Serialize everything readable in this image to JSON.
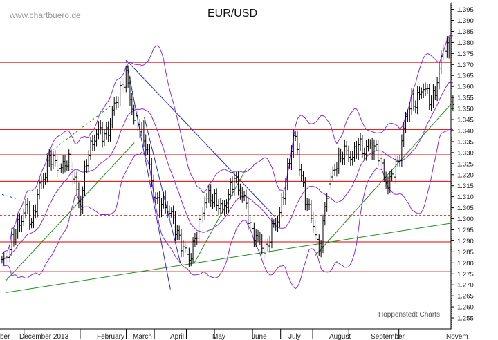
{
  "colors": {
    "price_bars": "#000000",
    "bollinger_bands": "#8a2be2",
    "resistance_lines": "#e00000",
    "trend_lines_green": "#1a8f1a",
    "trend_lines_blue": "#1e2fd0",
    "axis": "#000000"
  },
  "chart_data": {
    "type": "ohlc",
    "title": "EUR/USD",
    "watermark": "www.chartbuero.de",
    "credit": "Hoppenstedt Charts",
    "x_month_labels": [
      "ber",
      "December 2013",
      "February",
      "March",
      "April",
      "May",
      "June",
      "July",
      "August",
      "September",
      "Novem"
    ],
    "x_month_label_positions": [
      -0.5,
      1.0,
      3.0,
      4.0,
      5.0,
      6.0,
      7.0,
      8.0,
      9.0,
      10.0,
      11.3
    ],
    "x_month_boundaries": [
      0.35,
      1.75,
      2.9,
      3.6,
      4.4,
      5.1,
      6.05,
      6.75,
      7.55,
      8.45,
      9.7,
      10.75
    ],
    "y_axis": {
      "side": "right",
      "ylim": [
        1.25,
        1.398
      ],
      "tick_labels": [
        "1.255",
        "1.260",
        "1.265",
        "1.270",
        "1.275",
        "1.280",
        "1.285",
        "1.290",
        "1.295",
        "1.300",
        "1.305",
        "1.310",
        "1.315",
        "1.320",
        "1.325",
        "1.330",
        "1.335",
        "1.340",
        "1.345",
        "1.350",
        "1.355",
        "1.360",
        "1.365",
        "1.370",
        "1.375",
        "1.380",
        "1.385",
        "1.390",
        "1.395"
      ]
    },
    "x_range": [
      -0.25,
      11.0
    ],
    "horizontal_lines": [
      {
        "value": 1.371,
        "style": "solid"
      },
      {
        "value": 1.3405,
        "style": "solid"
      },
      {
        "value": 1.329,
        "style": "solid"
      },
      {
        "value": 1.317,
        "style": "solid"
      },
      {
        "value": 1.3015,
        "style": "dashed"
      },
      {
        "value": 1.2895,
        "style": "solid"
      },
      {
        "value": 1.276,
        "style": "solid"
      }
    ],
    "trend_lines": [
      {
        "color": "green",
        "style": "solid",
        "from": [
          -0.1,
          1.2665
        ],
        "to": [
          11.0,
          1.298
        ]
      },
      {
        "color": "green",
        "style": "solid",
        "from": [
          -0.1,
          1.272
        ],
        "to": [
          3.1,
          1.3345
        ]
      },
      {
        "color": "green",
        "style": "dashed",
        "from": [
          0.9,
          1.329
        ],
        "to": [
          2.5,
          1.351
        ]
      },
      {
        "color": "green",
        "style": "solid",
        "from": [
          4.6,
          1.28
        ],
        "to": [
          5.9,
          1.323
        ]
      },
      {
        "color": "green",
        "style": "solid",
        "from": [
          7.6,
          1.283
        ],
        "to": [
          11.0,
          1.352
        ]
      },
      {
        "color": "blue",
        "style": "solid",
        "from": [
          2.9,
          1.372
        ],
        "to": [
          4.0,
          1.268
        ]
      },
      {
        "color": "blue",
        "style": "solid",
        "from": [
          2.9,
          1.372
        ],
        "to": [
          6.6,
          1.301
        ]
      },
      {
        "color": "blue",
        "style": "solid",
        "from": [
          3.35,
          1.346
        ],
        "to": [
          4.25,
          1.28
        ]
      },
      {
        "color": "blue",
        "style": "dashed",
        "from": [
          -0.2,
          1.311
        ],
        "to": [
          0.2,
          1.309
        ]
      }
    ],
    "price_series": [
      [
        -0.2,
        1.279
      ],
      [
        0.0,
        1.287
      ],
      [
        0.2,
        1.297
      ],
      [
        0.4,
        1.305
      ],
      [
        0.55,
        1.298
      ],
      [
        0.7,
        1.312
      ],
      [
        0.85,
        1.32
      ],
      [
        1.0,
        1.328
      ],
      [
        1.15,
        1.325
      ],
      [
        1.3,
        1.322
      ],
      [
        1.45,
        1.328
      ],
      [
        1.6,
        1.318
      ],
      [
        1.75,
        1.305
      ],
      [
        1.9,
        1.325
      ],
      [
        2.05,
        1.335
      ],
      [
        2.2,
        1.34
      ],
      [
        2.35,
        1.338
      ],
      [
        2.5,
        1.342
      ],
      [
        2.6,
        1.352
      ],
      [
        2.7,
        1.356
      ],
      [
        2.8,
        1.36
      ],
      [
        2.9,
        1.365
      ],
      [
        3.0,
        1.356
      ],
      [
        3.1,
        1.343
      ],
      [
        3.2,
        1.344
      ],
      [
        3.35,
        1.336
      ],
      [
        3.45,
        1.328
      ],
      [
        3.55,
        1.315
      ],
      [
        3.7,
        1.305
      ],
      [
        3.85,
        1.308
      ],
      [
        4.0,
        1.302
      ],
      [
        4.15,
        1.295
      ],
      [
        4.3,
        1.287
      ],
      [
        4.45,
        1.282
      ],
      [
        4.55,
        1.286
      ],
      [
        4.7,
        1.296
      ],
      [
        4.85,
        1.308
      ],
      [
        5.0,
        1.31
      ],
      [
        5.15,
        1.308
      ],
      [
        5.3,
        1.303
      ],
      [
        5.45,
        1.311
      ],
      [
        5.6,
        1.318
      ],
      [
        5.75,
        1.313
      ],
      [
        5.9,
        1.305
      ],
      [
        6.0,
        1.296
      ],
      [
        6.15,
        1.291
      ],
      [
        6.3,
        1.288
      ],
      [
        6.4,
        1.285
      ],
      [
        6.5,
        1.293
      ],
      [
        6.6,
        1.299
      ],
      [
        6.7,
        1.3
      ],
      [
        6.8,
        1.308
      ],
      [
        6.9,
        1.32
      ],
      [
        7.0,
        1.33
      ],
      [
        7.1,
        1.338
      ],
      [
        7.2,
        1.328
      ],
      [
        7.3,
        1.315
      ],
      [
        7.4,
        1.306
      ],
      [
        7.5,
        1.303
      ],
      [
        7.6,
        1.295
      ],
      [
        7.7,
        1.283
      ],
      [
        7.8,
        1.296
      ],
      [
        7.9,
        1.312
      ],
      [
        8.0,
        1.317
      ],
      [
        8.1,
        1.324
      ],
      [
        8.25,
        1.328
      ],
      [
        8.4,
        1.331
      ],
      [
        8.55,
        1.327
      ],
      [
        8.7,
        1.335
      ],
      [
        8.85,
        1.33
      ],
      [
        9.0,
        1.334
      ],
      [
        9.15,
        1.331
      ],
      [
        9.3,
        1.322
      ],
      [
        9.45,
        1.314
      ],
      [
        9.55,
        1.321
      ],
      [
        9.7,
        1.327
      ],
      [
        9.8,
        1.337
      ],
      [
        9.9,
        1.348
      ],
      [
        10.0,
        1.354
      ],
      [
        10.1,
        1.351
      ],
      [
        10.2,
        1.356
      ],
      [
        10.3,
        1.361
      ],
      [
        10.4,
        1.356
      ],
      [
        10.5,
        1.353
      ],
      [
        10.6,
        1.358
      ],
      [
        10.7,
        1.366
      ],
      [
        10.8,
        1.377
      ],
      [
        10.88,
        1.381
      ],
      [
        10.95,
        1.374
      ],
      [
        11.0,
        1.356
      ],
      [
        11.05,
        1.35
      ]
    ]
  }
}
